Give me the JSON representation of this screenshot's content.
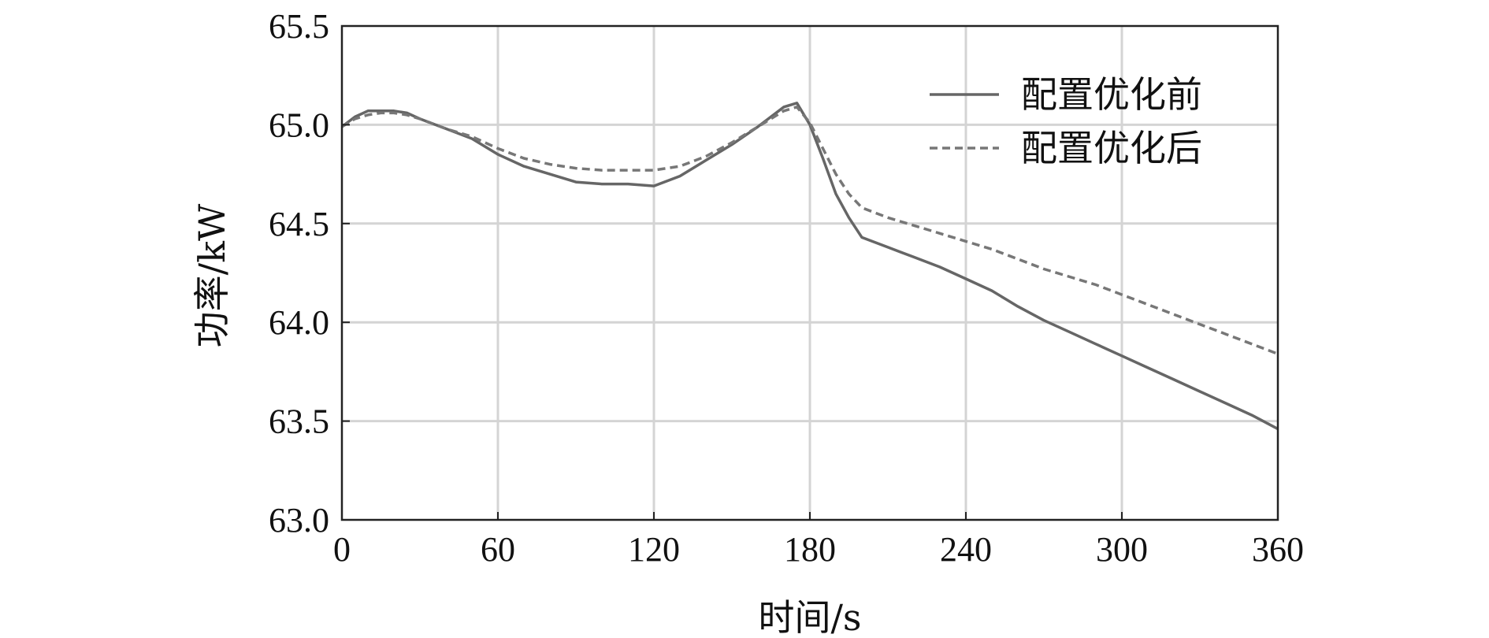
{
  "chart_data": {
    "type": "line",
    "xlabel": "时间/s",
    "ylabel": "功率/kW",
    "xlim": [
      0,
      360
    ],
    "ylim": [
      63.0,
      65.5
    ],
    "xticks": [
      0,
      60,
      120,
      180,
      240,
      300,
      360
    ],
    "yticks": [
      63.0,
      63.5,
      64.0,
      64.5,
      65.0,
      65.5
    ],
    "xtick_labels": [
      "0",
      "60",
      "120",
      "180",
      "240",
      "300",
      "360"
    ],
    "ytick_labels": [
      "63.0",
      "63.5",
      "64.0",
      "64.5",
      "65.0",
      "65.5"
    ],
    "grid": true,
    "legend_position": "top-right",
    "series": [
      {
        "name": "配置优化前",
        "style": "solid",
        "color": "#666666",
        "x": [
          0,
          5,
          10,
          15,
          20,
          25,
          30,
          40,
          50,
          60,
          70,
          80,
          90,
          100,
          110,
          120,
          130,
          140,
          150,
          160,
          170,
          175,
          180,
          185,
          190,
          195,
          200,
          210,
          220,
          230,
          240,
          250,
          260,
          270,
          280,
          290,
          300,
          310,
          320,
          330,
          340,
          350,
          360
        ],
        "y": [
          64.99,
          65.04,
          65.07,
          65.07,
          65.07,
          65.06,
          65.03,
          64.98,
          64.93,
          64.85,
          64.79,
          64.75,
          64.71,
          64.7,
          64.7,
          64.69,
          64.74,
          64.82,
          64.9,
          64.99,
          65.09,
          65.11,
          65.0,
          64.83,
          64.65,
          64.53,
          64.43,
          64.38,
          64.33,
          64.28,
          64.22,
          64.16,
          64.08,
          64.01,
          63.95,
          63.89,
          63.83,
          63.77,
          63.71,
          63.65,
          63.59,
          63.53,
          63.46
        ]
      },
      {
        "name": "配置优化后",
        "style": "dashed",
        "color": "#777777",
        "x": [
          0,
          5,
          10,
          15,
          20,
          25,
          30,
          40,
          50,
          60,
          70,
          80,
          90,
          100,
          110,
          120,
          130,
          140,
          150,
          160,
          170,
          175,
          180,
          185,
          190,
          195,
          200,
          210,
          220,
          230,
          240,
          250,
          260,
          270,
          280,
          290,
          300,
          310,
          320,
          330,
          340,
          350,
          360
        ],
        "y": [
          64.99,
          65.03,
          65.05,
          65.06,
          65.06,
          65.05,
          65.03,
          64.98,
          64.94,
          64.88,
          64.83,
          64.8,
          64.78,
          64.77,
          64.77,
          64.77,
          64.79,
          64.84,
          64.91,
          64.99,
          65.07,
          65.09,
          65.01,
          64.88,
          64.75,
          64.65,
          64.58,
          64.53,
          64.49,
          64.45,
          64.41,
          64.37,
          64.32,
          64.27,
          64.23,
          64.19,
          64.14,
          64.09,
          64.04,
          63.99,
          63.94,
          63.89,
          63.84
        ]
      }
    ]
  }
}
